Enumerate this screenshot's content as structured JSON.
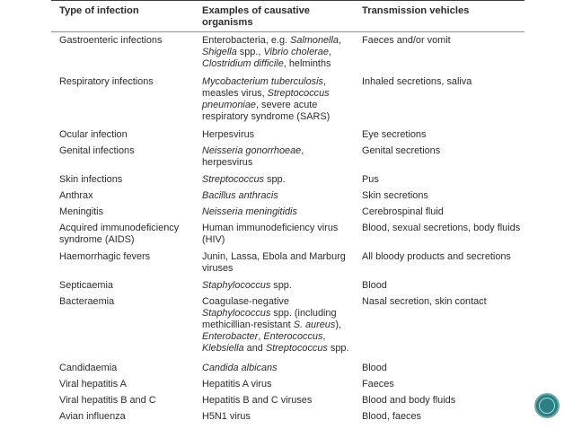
{
  "table": {
    "headers": [
      "Type of infection",
      "Examples of causative organisms",
      "Transmission vehicles"
    ],
    "rows": [
      {
        "type": "Gastroenteric infections",
        "org_html": "Enterobacteria, e.g. <span class=\"i\">Salmonella</span>, <span class=\"i\">Shigella</span> spp., <span class=\"i\">Vibrio cholerae</span>, <span class=\"i\">Clostridium difficile</span>, helminths",
        "trans": "Faeces and/or vomit",
        "h": 46
      },
      {
        "type": "Respiratory infections",
        "org_html": "<span class=\"i\">Mycobacterium tuberculosis</span>, measles virus, <span class=\"i\">Streptococcus pneumoniae</span>, severe acute respiratory syndrome (SARS)",
        "trans": "Inhaled secretions, saliva",
        "h": 59
      },
      {
        "type": "Ocular infection",
        "org_html": "Herpesvirus",
        "trans": "Eye secretions",
        "h": 18
      },
      {
        "type": "Genital infections",
        "org_html": "<span class=\"i\">Neisseria gonorrhoeae</span>, herpesvirus",
        "trans": "Genital secretions",
        "h": 32
      },
      {
        "type": "Skin infections",
        "org_html": "<span class=\"i\">Streptococcus</span> spp.",
        "trans": "Pus",
        "h": 18
      },
      {
        "type": "Anthrax",
        "org_html": "<span class=\"i\">Bacillus anthracis</span>",
        "trans": "Skin secretions",
        "h": 18
      },
      {
        "type": "Meningitis",
        "org_html": "<span class=\"i\">Neisseria meningitidis</span>",
        "trans": "Cerebrospinal fluid",
        "h": 18
      },
      {
        "type": "Acquired immunodeficiency syndrome (AIDS)",
        "org_html": "Human immunodeficiency virus (HIV)",
        "trans": "Blood, sexual secretions, body fluids",
        "h": 32
      },
      {
        "type": "Haemorrhagic fevers",
        "org_html": "Junin, Lassa, Ebola and Marburg viruses",
        "trans": "All bloody products and secretions",
        "h": 32
      },
      {
        "type": "Septicaemia",
        "org_html": "<span class=\"i\">Staphylococcus</span> spp.",
        "trans": "Blood",
        "h": 18
      },
      {
        "type": "Bacteraemia",
        "org_html": "Coagulase-negative <span class=\"i\">Staphylococcus</span> spp. (including methicillian-resistant <span class=\"i\">S. aureus</span>), <span class=\"i\">Enterobacter</span>, <span class=\"i\">Enterococcus</span>, <span class=\"i\">Klebsiella</span> and <span class=\"i\">Streptococcus</span> spp.",
        "trans": "Nasal secretion, skin contact",
        "h": 74
      },
      {
        "type": "Candidaemia",
        "org_html": "<span class=\"i\">Candida albicans</span>",
        "trans": "Blood",
        "h": 18
      },
      {
        "type": "Viral hepatitis A",
        "org_html": "Hepatitis A virus",
        "trans": "Faeces",
        "h": 18
      },
      {
        "type": "Viral hepatitis B and C",
        "org_html": "Hepatitis B and C viruses",
        "trans": "Blood and body fluids",
        "h": 18
      },
      {
        "type": "Avian influenza",
        "org_html": "H5N1 virus",
        "trans": "Blood, faeces",
        "h": 18
      }
    ]
  },
  "badge_icon": "circle-badge-icon",
  "colors": {
    "header_rule": "#5b9fc0",
    "badge": "#2a7f82"
  }
}
